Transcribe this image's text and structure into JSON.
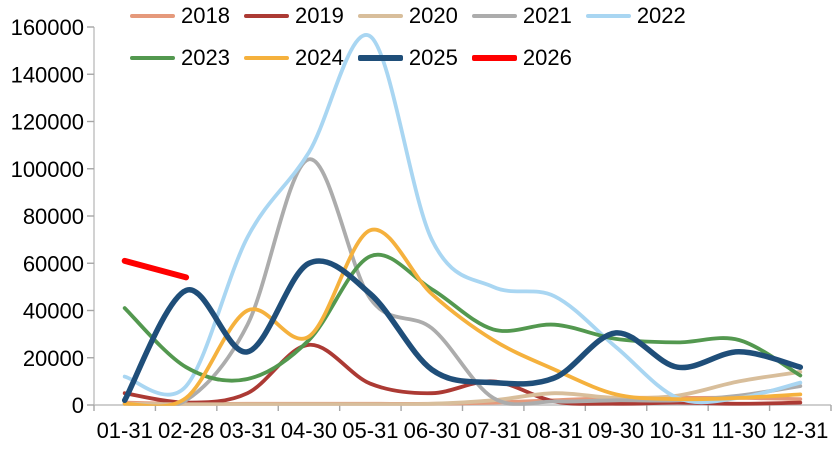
{
  "figure": {
    "title": "",
    "background": "#ffffff",
    "axis_line_color": "#BFBFBF",
    "tick_color": "#A6A6A6",
    "label_color": "#000000"
  },
  "chart_data": {
    "type": "line",
    "title": "",
    "xlabel": "",
    "ylabel": "",
    "x": [
      "01-31",
      "02-28",
      "03-31",
      "04-30",
      "05-31",
      "06-30",
      "07-31",
      "08-31",
      "09-30",
      "10-31",
      "11-30",
      "12-31"
    ],
    "ylim": [
      0,
      160000
    ],
    "y_ticks": [
      0,
      20000,
      40000,
      60000,
      80000,
      100000,
      120000,
      140000,
      160000
    ],
    "y_tick_labels": [
      "0",
      "20000",
      "40000",
      "60000",
      "80000",
      "100000",
      "120000",
      "140000",
      "160000"
    ],
    "grid": false,
    "smooth": true,
    "legend_position": "top-left",
    "legend_rows": [
      [
        "2018",
        "2019",
        "2020",
        "2021",
        "2022"
      ],
      [
        "2023",
        "2024",
        "2025",
        "2026"
      ]
    ],
    "series": [
      {
        "name": "2018",
        "color": "#E5997B",
        "width": 3.8,
        "values": [
          1000,
          500,
          500,
          500,
          500,
          500,
          1000,
          2000,
          3000,
          3000,
          3000,
          2500
        ]
      },
      {
        "name": "2019",
        "color": "#AC3A34",
        "width": 3.8,
        "values": [
          5000,
          1000,
          5000,
          25500,
          9000,
          5000,
          10000,
          1500,
          500,
          1000,
          500,
          1000
        ]
      },
      {
        "name": "2020",
        "color": "#D8BE9B",
        "width": 3.8,
        "values": [
          500,
          300,
          300,
          300,
          300,
          500,
          2000,
          5000,
          3000,
          4000,
          10000,
          14000
        ]
      },
      {
        "name": "2021",
        "color": "#ACACAC",
        "width": 3.8,
        "values": [
          500,
          2000,
          34000,
          104000,
          45000,
          32500,
          3000,
          1500,
          2000,
          2000,
          4000,
          8000
        ]
      },
      {
        "name": "2022",
        "color": "#A9D6F2",
        "width": 3.8,
        "values": [
          12000,
          8000,
          71000,
          107000,
          156000,
          70000,
          50000,
          46000,
          24500,
          3000,
          3000,
          9500
        ]
      },
      {
        "name": "2023",
        "color": "#53984F",
        "width": 3.8,
        "values": [
          41000,
          16000,
          11000,
          27500,
          63000,
          49000,
          32000,
          34000,
          28000,
          26500,
          27500,
          12500
        ]
      },
      {
        "name": "2024",
        "color": "#F5B13D",
        "width": 3.8,
        "values": [
          500,
          3000,
          40000,
          29000,
          74000,
          47000,
          27500,
          15000,
          4500,
          2500,
          3000,
          4500
        ]
      },
      {
        "name": "2025",
        "color": "#1F4E79",
        "width": 5.5,
        "values": [
          2000,
          48500,
          22500,
          60000,
          47000,
          15000,
          9500,
          11500,
          30500,
          16000,
          22500,
          16000
        ]
      },
      {
        "name": "2026",
        "color": "#FF0000",
        "width": 6.0,
        "values": [
          61000,
          54000,
          null,
          null,
          null,
          null,
          null,
          null,
          null,
          null,
          null,
          null
        ]
      }
    ]
  }
}
